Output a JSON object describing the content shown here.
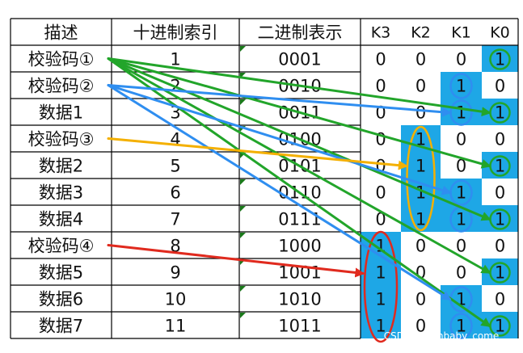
{
  "headers": [
    "描述",
    "十进制索引",
    "二进制表示",
    "K3",
    "K2",
    "K1",
    "K0"
  ],
  "rows": [
    {
      "desc": "校验码①",
      "dec": "1",
      "bin": "0001",
      "k3": "0",
      "k2": "0",
      "k1": "0",
      "k0": "1"
    },
    {
      "desc": "校验码②",
      "dec": "2",
      "bin": "0010",
      "k3": "0",
      "k2": "0",
      "k1": "1",
      "k0": "0"
    },
    {
      "desc": "数据1",
      "dec": "3",
      "bin": "0011",
      "k3": "0",
      "k2": "0",
      "k1": "1",
      "k0": "1"
    },
    {
      "desc": "校验码③",
      "dec": "4",
      "bin": "0100",
      "k3": "0",
      "k2": "1",
      "k1": "0",
      "k0": "0"
    },
    {
      "desc": "数据2",
      "dec": "5",
      "bin": "0101",
      "k3": "0",
      "k2": "1",
      "k1": "0",
      "k0": "1"
    },
    {
      "desc": "数据3",
      "dec": "6",
      "bin": "0110",
      "k3": "0",
      "k2": "1",
      "k1": "1",
      "k0": "0"
    },
    {
      "desc": "数据4",
      "dec": "7",
      "bin": "0111",
      "k3": "0",
      "k2": "1",
      "k1": "1",
      "k0": "1"
    },
    {
      "desc": "校验码④",
      "dec": "8",
      "bin": "1000",
      "k3": "1",
      "k2": "0",
      "k1": "0",
      "k0": "0"
    },
    {
      "desc": "数据5",
      "dec": "9",
      "bin": "1001",
      "k3": "1",
      "k2": "0",
      "k1": "0",
      "k0": "1"
    },
    {
      "desc": "数据6",
      "dec": "10",
      "bin": "1010",
      "k3": "1",
      "k2": "0",
      "k1": "1",
      "k0": "0"
    },
    {
      "desc": "数据7",
      "dec": "11",
      "bin": "1011",
      "k3": "1",
      "k2": "0",
      "k1": "1",
      "k0": "1"
    }
  ],
  "watermark": "CSDN @tombaby_come",
  "colors": {
    "highlight": "#1ea7e6",
    "green": "#22a52a",
    "blue": "#2f8ef0",
    "orange": "#f4b000",
    "red": "#e02a1e",
    "grid": "#000000",
    "formula_mark": "#1a7a1a"
  },
  "arrows": [
    {
      "from": "校验码①",
      "to": "数据1",
      "color": "green"
    },
    {
      "from": "校验码①",
      "to": "数据2",
      "color": "green"
    },
    {
      "from": "校验码①",
      "to": "数据4",
      "color": "green"
    },
    {
      "from": "校验码①",
      "to": "数据5",
      "color": "green"
    },
    {
      "from": "校验码①",
      "to": "数据7",
      "color": "green"
    },
    {
      "from": "校验码②",
      "to": "数据1",
      "color": "blue"
    },
    {
      "from": "校验码②",
      "to": "数据3",
      "color": "blue"
    },
    {
      "from": "校验码②",
      "to": "数据6",
      "color": "blue"
    },
    {
      "from": "校验码③",
      "to": "数据2",
      "color": "orange"
    },
    {
      "from": "校验码④",
      "to": "数据5",
      "color": "red"
    }
  ]
}
